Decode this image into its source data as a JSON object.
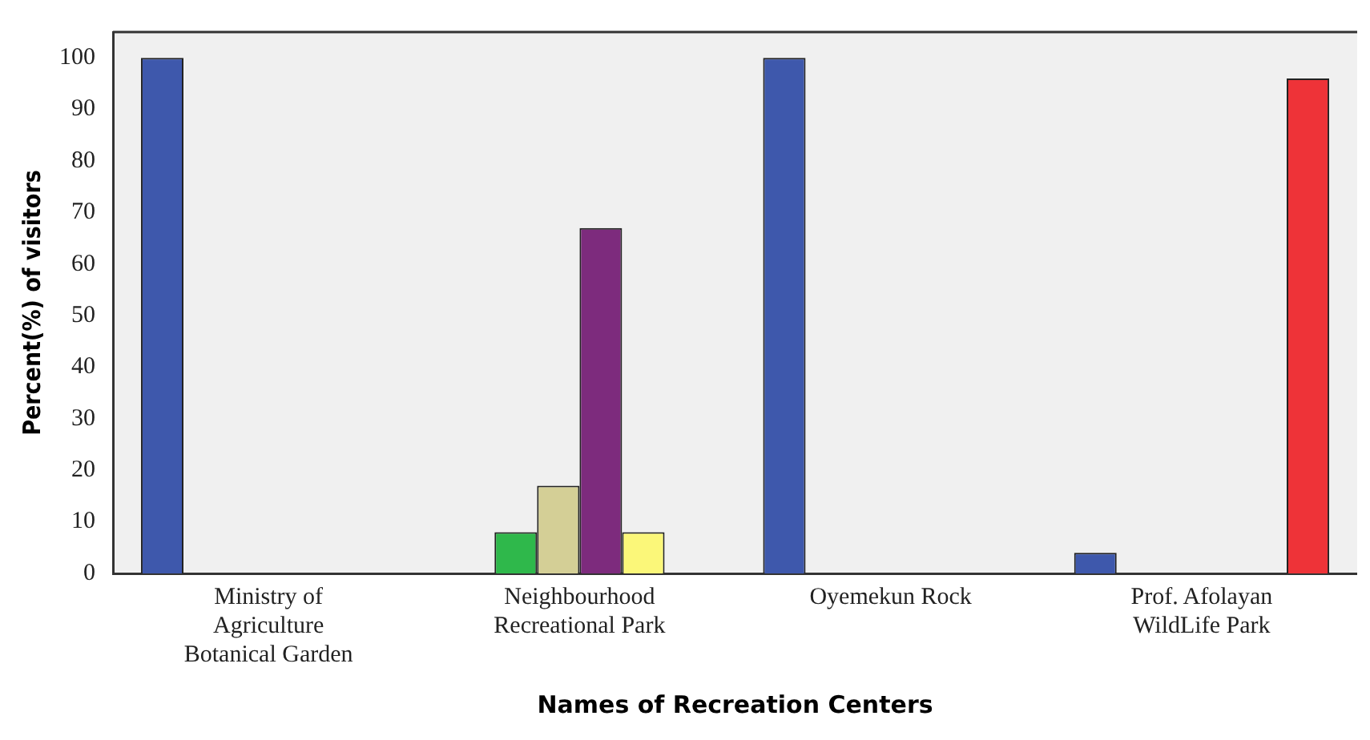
{
  "chart_data": {
    "type": "bar",
    "xlabel": "Names of Recreation Centers",
    "ylabel": "Percent(%) of visitors",
    "categories": [
      "Ministry of Agriculture Botanical Garden",
      "Neighbourhood Recreational Park",
      "Oyemekun Rock",
      "Prof. Afolayan WildLife Park"
    ],
    "series": [
      {
        "color": "#3e58ac",
        "values": [
          100,
          null,
          100,
          4
        ]
      },
      {
        "color": "#2fb84b",
        "values": [
          null,
          8,
          null,
          null
        ]
      },
      {
        "color": "#d4cf96",
        "values": [
          null,
          17,
          null,
          null
        ]
      },
      {
        "color": "#7d2b7d",
        "values": [
          null,
          67,
          null,
          null
        ]
      },
      {
        "color": "#fbf779",
        "values": [
          null,
          8,
          null,
          null
        ]
      },
      {
        "color": "#ee3338",
        "values": [
          null,
          null,
          null,
          96
        ]
      }
    ],
    "ylim": [
      0,
      105
    ],
    "yticks": [
      0,
      10,
      20,
      30,
      40,
      50,
      60,
      70,
      80,
      90,
      100
    ],
    "grid": false,
    "legend": false
  }
}
